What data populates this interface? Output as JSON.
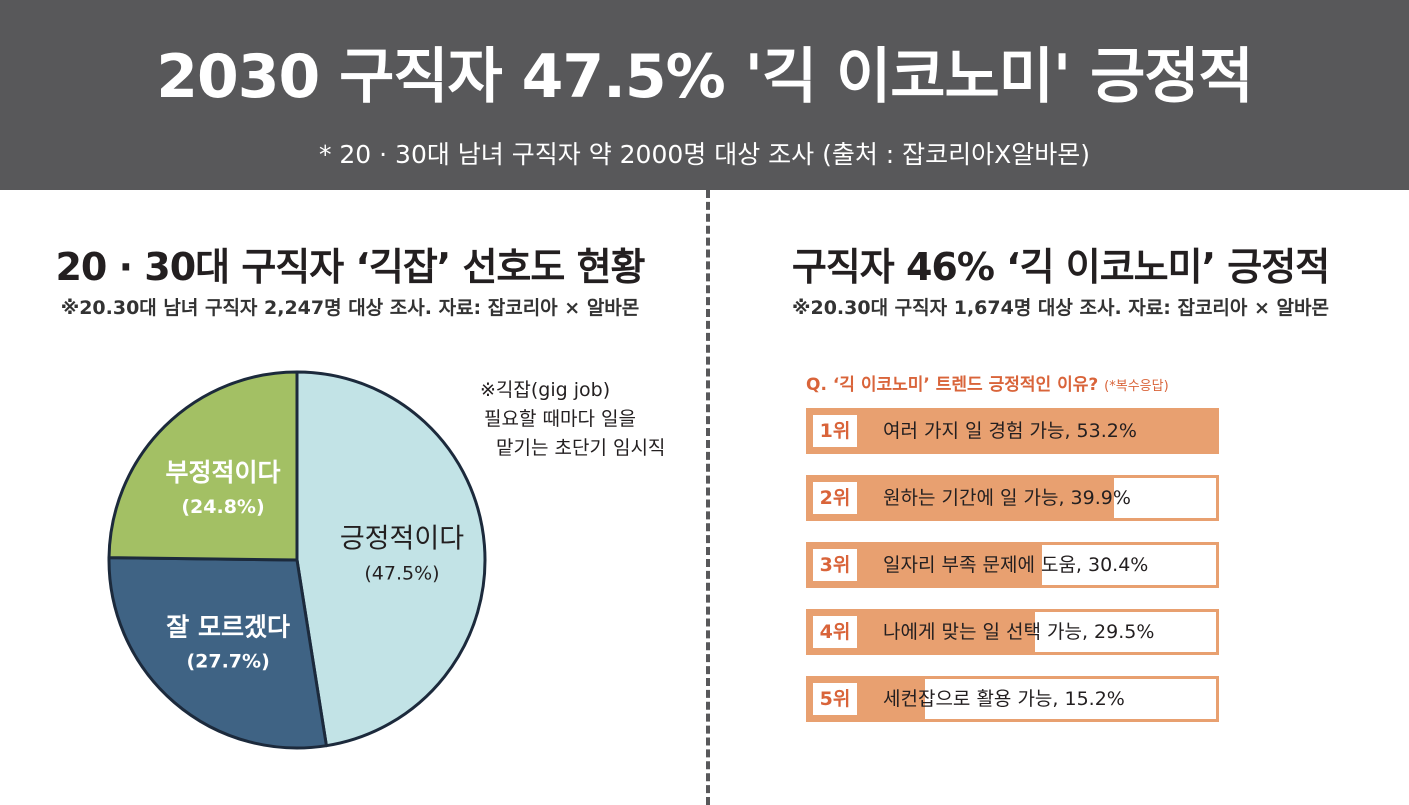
{
  "header": {
    "title": "2030 구직자 47.5% '긱 이코노미' 긍정적",
    "subtitle": "* 20 · 30대 남녀 구직자 약 2000명 대상 조사 (출처 : 잡코리아X알바몬)"
  },
  "left_panel": {
    "title": "20 · 30대 구직자 ‘긱잡’ 선호도 현황",
    "subtitle": "※20.30대 남녀 구직자 2,247명 대상 조사. 자료: 잡코리아 × 알바몬",
    "note": [
      "※긱잡(gig job)",
      "필요할 때마다 일을",
      "맡기는 초단기 임시직"
    ]
  },
  "right_panel": {
    "title": "구직자 46% ‘긱 이코노미’ 긍정적",
    "subtitle": "※20.30대 구직자 1,674명 대상 조사. 자료: 잡코리아 × 알바몬",
    "question": "Q. ‘긱 이코노미’ 트렌드 긍정적인 이유?",
    "question_note": "(*복수응답)"
  },
  "colors": {
    "header_bg": "#58585a",
    "positive": "#c2e3e6",
    "negative": "#a3c064",
    "unsure": "#3f6384",
    "bar": "#e8a070",
    "accent": "#d9643a"
  },
  "chart_data": [
    {
      "type": "pie",
      "slices": [
        {
          "label": "긍정적이다",
          "value_label": "(47.5%)",
          "value": 47.5
        },
        {
          "label": "잘 모르겠다",
          "value_label": "(27.7%)",
          "value": 27.7
        },
        {
          "label": "부정적이다",
          "value_label": "(24.8%)",
          "value": 24.8
        }
      ]
    },
    {
      "type": "bar",
      "orientation": "horizontal",
      "bars": [
        {
          "rank": "1위",
          "label": "여러 가지 일 경험 가능, 53.2%",
          "value": 53.2
        },
        {
          "rank": "2위",
          "label": "원하는 기간에 일 가능, 39.9%",
          "value": 39.9
        },
        {
          "rank": "3위",
          "label": "일자리 부족 문제에 도움, 30.4%",
          "value": 30.4
        },
        {
          "rank": "4위",
          "label": "나에게 맞는 일 선택 가능, 29.5%",
          "value": 29.5
        },
        {
          "rank": "5위",
          "label": "세컨잡으로 활용 가능, 15.2%",
          "value": 15.2
        }
      ],
      "xlim": [
        0,
        53.2
      ]
    }
  ]
}
